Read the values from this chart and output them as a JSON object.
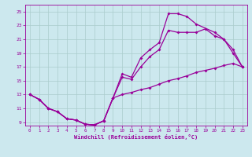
{
  "xlabel": "Windchill (Refroidissement éolien,°C)",
  "bg_color": "#cce8ee",
  "line_color": "#990099",
  "grid_color": "#aacccc",
  "xlim": [
    -0.5,
    23.5
  ],
  "ylim": [
    8.5,
    26.0
  ],
  "xticks": [
    0,
    1,
    2,
    3,
    4,
    5,
    6,
    7,
    8,
    9,
    10,
    11,
    12,
    13,
    14,
    15,
    16,
    17,
    18,
    19,
    20,
    21,
    22,
    23
  ],
  "yticks": [
    9,
    11,
    13,
    15,
    17,
    19,
    21,
    23,
    25
  ],
  "line1_x": [
    0,
    1,
    2,
    3,
    4,
    5,
    6,
    7,
    8,
    9,
    10,
    11,
    12,
    13,
    14,
    15,
    16,
    17,
    18,
    20,
    21,
    22,
    23
  ],
  "line1_y": [
    13.0,
    12.3,
    11.0,
    10.5,
    9.5,
    9.3,
    8.7,
    8.6,
    9.2,
    12.5,
    16.0,
    15.5,
    18.3,
    19.5,
    20.5,
    24.7,
    24.7,
    24.3,
    23.2,
    22.0,
    21.0,
    19.0,
    17.0
  ],
  "line2_x": [
    0,
    1,
    2,
    3,
    4,
    5,
    6,
    7,
    8,
    9,
    10,
    11,
    12,
    13,
    14,
    15,
    16,
    17,
    18,
    19,
    20,
    21,
    22,
    23
  ],
  "line2_y": [
    13.0,
    12.3,
    11.0,
    10.5,
    9.5,
    9.3,
    8.7,
    8.6,
    9.2,
    12.5,
    15.5,
    15.2,
    17.0,
    18.5,
    19.5,
    22.3,
    22.0,
    22.0,
    22.0,
    22.5,
    21.5,
    21.0,
    19.5,
    17.0
  ],
  "line3_x": [
    0,
    1,
    2,
    3,
    4,
    5,
    6,
    7,
    8,
    9,
    10,
    11,
    12,
    13,
    14,
    15,
    16,
    17,
    18,
    19,
    20,
    21,
    22,
    23
  ],
  "line3_y": [
    13.0,
    12.3,
    11.0,
    10.5,
    9.5,
    9.3,
    8.7,
    8.6,
    9.2,
    12.5,
    13.0,
    13.3,
    13.7,
    14.0,
    14.5,
    15.0,
    15.3,
    15.7,
    16.2,
    16.5,
    16.8,
    17.2,
    17.5,
    17.0
  ]
}
